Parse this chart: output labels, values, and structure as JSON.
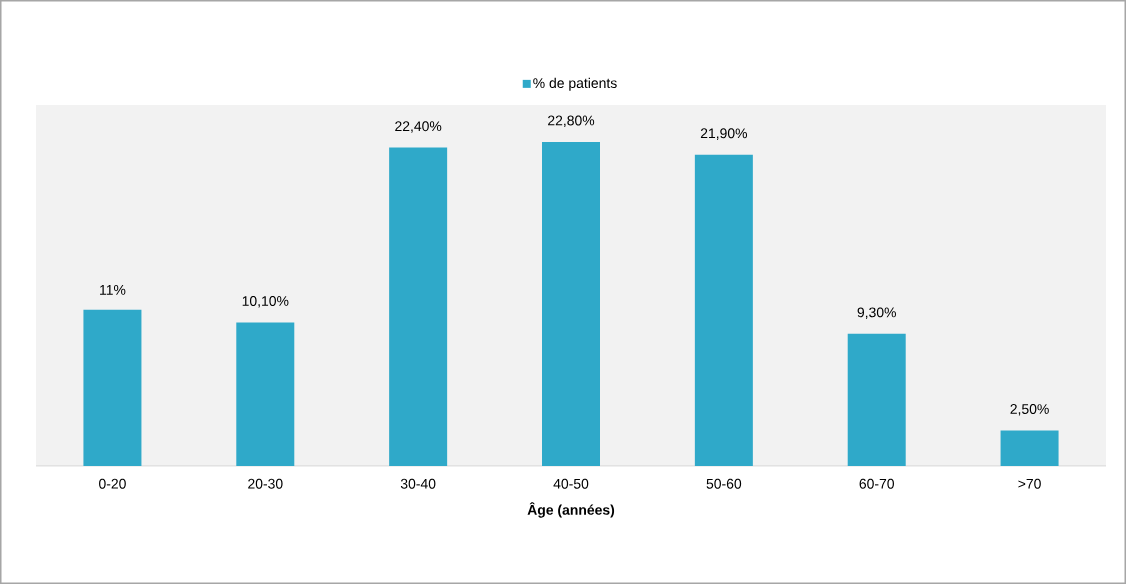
{
  "chart_data": {
    "type": "bar",
    "xlabel": "Âge (années)",
    "categories": [
      "0-20",
      "20-30",
      "30-40",
      "40-50",
      "50-60",
      "60-70",
      ">70"
    ],
    "series": [
      {
        "name": "% de patients",
        "color": "#2fa9c9",
        "values": [
          11,
          10.1,
          22.4,
          22.8,
          21.9,
          9.3,
          2.5
        ],
        "value_labels": [
          "11%",
          "10,10%",
          "22,40%",
          "22,80%",
          "21,90%",
          "9,30%",
          "2,50%"
        ]
      }
    ],
    "ylim": [
      0,
      25.4
    ],
    "legend": "top"
  }
}
